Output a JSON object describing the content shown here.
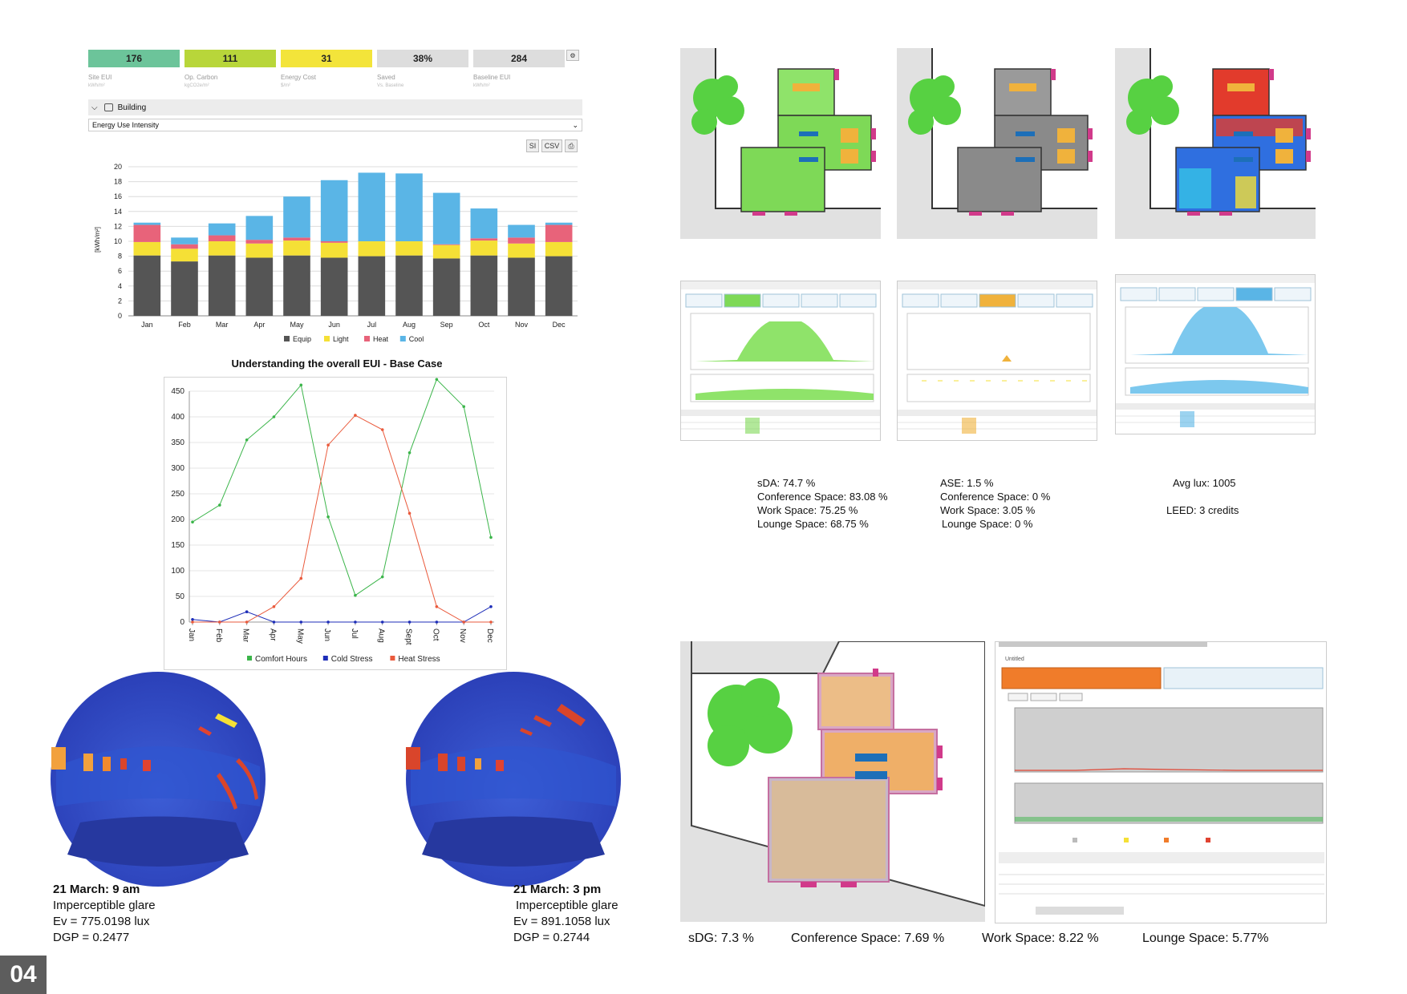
{
  "kpis": [
    {
      "value": "176",
      "label": "Site EUI",
      "unit": "kWh/m²",
      "color": "#6cc49a"
    },
    {
      "value": "111",
      "label": "Op. Carbon",
      "unit": "kgCO2e/m²",
      "color": "#b8d63a"
    },
    {
      "value": "31",
      "label": "Energy Cost",
      "unit": "$/m²",
      "color": "#f3e43a"
    },
    {
      "value": "38%",
      "label": "Saved",
      "unit": "Vs. Baseline",
      "color": "#dddddd"
    },
    {
      "value": "284",
      "label": "Baseline EUI",
      "unit": "kWh/m²",
      "color": "#dddddd"
    }
  ],
  "building_bar": {
    "label": "Building"
  },
  "metric_select": {
    "value": "Energy Use Intensity"
  },
  "unit_buttons": {
    "si": "SI",
    "csv": "CSV"
  },
  "page_number": "04",
  "chart_data": [
    {
      "type": "bar",
      "stacked": true,
      "title": "",
      "ylabel": "[kWh/m²]",
      "ylim": [
        0,
        20
      ],
      "yticks": [
        0,
        2,
        4,
        6,
        8,
        10,
        12,
        14,
        16,
        18,
        20
      ],
      "categories": [
        "Jan",
        "Feb",
        "Mar",
        "Apr",
        "May",
        "Jun",
        "Jul",
        "Aug",
        "Sep",
        "Oct",
        "Nov",
        "Dec"
      ],
      "legend_position": "bottom",
      "series": [
        {
          "name": "Equip",
          "color": "#555555",
          "values": [
            8.1,
            7.3,
            8.1,
            7.8,
            8.1,
            7.8,
            8.0,
            8.1,
            7.7,
            8.1,
            7.8,
            8.0
          ]
        },
        {
          "name": "Light",
          "color": "#f5e036",
          "values": [
            1.8,
            1.7,
            1.9,
            1.9,
            2.0,
            2.0,
            2.0,
            1.9,
            1.8,
            2.0,
            1.9,
            1.9
          ]
        },
        {
          "name": "Heat",
          "color": "#e8637a",
          "values": [
            2.3,
            0.6,
            0.8,
            0.5,
            0.4,
            0.2,
            0.0,
            0.0,
            0.1,
            0.3,
            0.8,
            2.3
          ]
        },
        {
          "name": "Cool",
          "color": "#5ab5e6",
          "values": [
            0.3,
            0.9,
            1.6,
            3.2,
            5.5,
            8.2,
            9.2,
            9.1,
            6.9,
            4.0,
            1.7,
            0.3
          ]
        }
      ]
    },
    {
      "type": "line",
      "title": "Understanding the overall EUI - Base Case",
      "ylim": [
        0,
        450
      ],
      "yticks": [
        0,
        50,
        100,
        150,
        200,
        250,
        300,
        350,
        400,
        450
      ],
      "categories": [
        "Jan",
        "Feb",
        "Mar",
        "Apr",
        "May",
        "Jun",
        "Jul",
        "Aug",
        "Sept",
        "Oct",
        "Nov",
        "Dec"
      ],
      "legend_position": "bottom",
      "series": [
        {
          "name": "Comfort Hours",
          "color": "#3bb54a",
          "values": [
            195,
            228,
            355,
            400,
            462,
            205,
            52,
            88,
            330,
            473,
            420,
            165
          ]
        },
        {
          "name": "Cold Stress",
          "color": "#1d2db8",
          "values": [
            5,
            0,
            20,
            0,
            0,
            0,
            0,
            0,
            0,
            0,
            0,
            30
          ]
        },
        {
          "name": "Heat Stress",
          "color": "#ea5a3c",
          "values": [
            0,
            0,
            0,
            30,
            85,
            345,
            403,
            375,
            212,
            30,
            0,
            0
          ]
        }
      ]
    }
  ],
  "glare": [
    {
      "title": "21 March: 9 am",
      "line1": "Imperceptible glare",
      "line2": "Ev = 775.0198 lux",
      "line3": "DGP = 0.2477"
    },
    {
      "title": "21 March: 3 pm",
      "line1": "Imperceptible glare",
      "line2": "Ev = 891.1058 lux",
      "line3": "DGP = 0.2744"
    }
  ],
  "daylight_captions": {
    "sda": [
      "sDA: 74.7 %",
      "Conference Space: 83.08 %",
      "Work Space: 75.25 %",
      "Lounge Space: 68.75 %"
    ],
    "ase": [
      "ASE: 1.5 %",
      "Conference Space: 0 %",
      "Work Space: 3.05 %",
      "Lounge Space: 0 %"
    ],
    "lux": [
      "Avg lux: 1005",
      "LEED: 3 credits"
    ]
  },
  "sdg_captions": [
    "sDG: 7.3 %",
    "Conference Space: 7.69 %",
    "Work Space: 8.22 %",
    "Lounge Space: 5.77%"
  ],
  "colors": {
    "tree": "#57d142",
    "floor_green": "#7ed957",
    "floor_gray": "#8a8a8a",
    "furniture": "#f0b23c",
    "door": "#d13a8a"
  }
}
